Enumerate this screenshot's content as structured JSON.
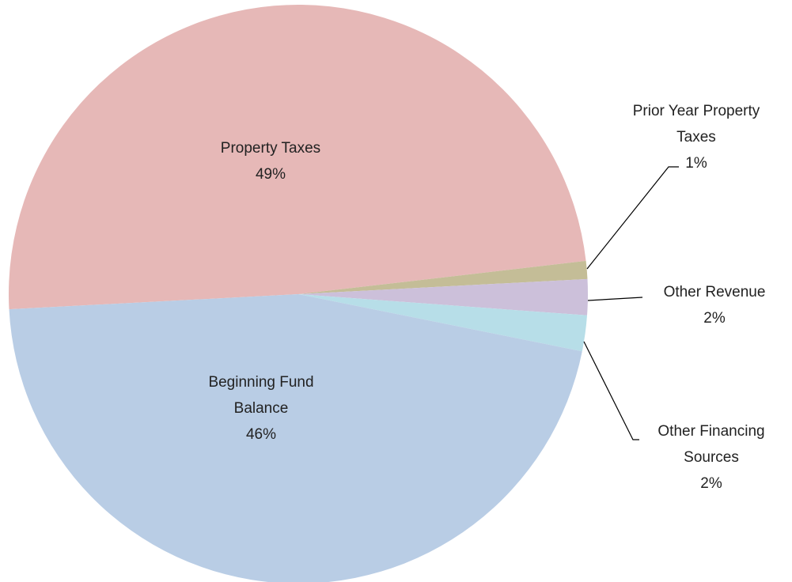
{
  "chart_data": {
    "type": "pie",
    "categories": [
      "Property Taxes",
      "Prior Year Property Taxes",
      "Other Revenue",
      "Other Financing Sources",
      "Beginning Fund Balance"
    ],
    "values": [
      49,
      1,
      2,
      2,
      46
    ],
    "value_labels": [
      "49%",
      "1%",
      "2%",
      "2%",
      "46%"
    ],
    "colors": [
      "#e6b8b7",
      "#c4bd97",
      "#ccc0da",
      "#b7dee8",
      "#b9cde5"
    ]
  }
}
